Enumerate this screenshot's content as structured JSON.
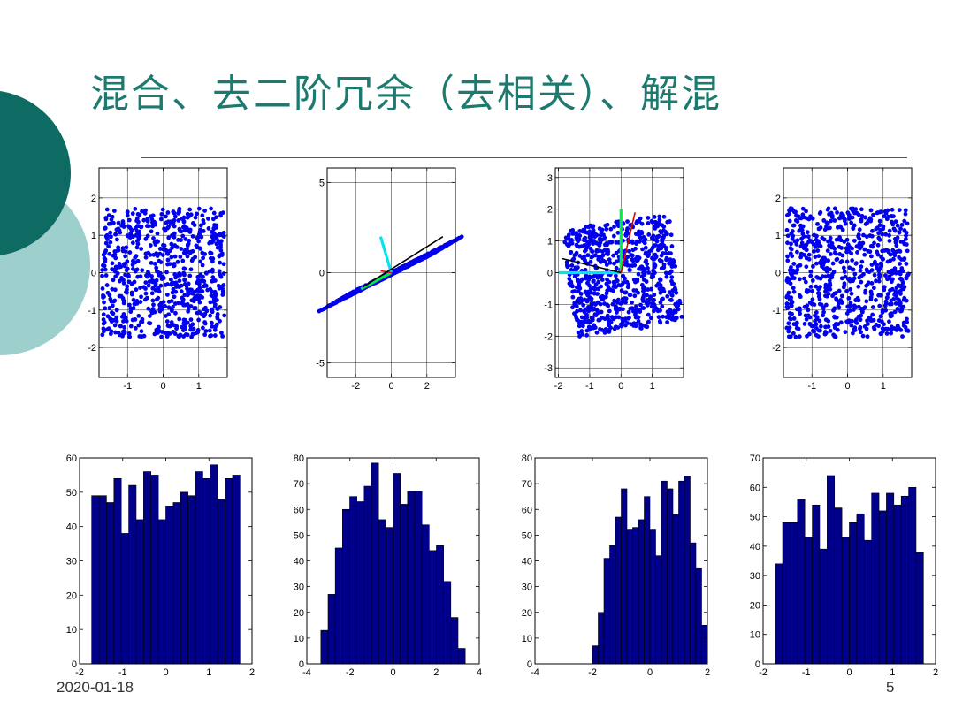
{
  "title": "混合、去二阶冗余（去相关）、解混",
  "footer": {
    "date": "2020-01-18",
    "page": "5"
  },
  "colors": {
    "decor_dark": "#0e6b63",
    "decor_light": "#9dcfcd",
    "title": "#1d7a6e",
    "points": "#0000ee",
    "bars": "#00008b"
  },
  "chart_data": [
    {
      "type": "scatter",
      "distribution": "uniform-square",
      "xlim": [
        -1.8,
        1.8
      ],
      "ylim": [
        -2.8,
        2.8
      ],
      "xticks": [
        -1,
        0,
        1
      ],
      "yticks": [
        -2,
        -1,
        0,
        1,
        2
      ],
      "point_spread": [
        -1.72,
        1.72,
        -1.72,
        1.72
      ],
      "grid": true
    },
    {
      "type": "scatter",
      "distribution": "mixed-parallelogram",
      "xlim": [
        -3.6,
        3.6
      ],
      "ylim": [
        -5.8,
        5.8
      ],
      "xticks": [
        -2,
        0,
        2
      ],
      "yticks": [
        -5,
        0,
        5
      ],
      "grid": true,
      "axes_overlay": [
        {
          "color": "#00e5ee",
          "from": [
            0,
            0
          ],
          "to": [
            -0.6,
            2.0
          ]
        },
        {
          "color": "#00ee44",
          "from": [
            0,
            0
          ],
          "to": [
            -1.7,
            -0.9
          ]
        },
        {
          "color": "#dd0000",
          "from": [
            0,
            0
          ],
          "to": [
            -0.6,
            0.1
          ]
        },
        {
          "color": "#000000",
          "from": [
            -1.6,
            -0.8
          ],
          "to": [
            2.9,
            2.0
          ]
        }
      ]
    },
    {
      "type": "scatter",
      "distribution": "whitened-rotated-square",
      "xlim": [
        -2.1,
        2.0
      ],
      "ylim": [
        -3.3,
        3.3
      ],
      "xticks": [
        -2,
        -1,
        0,
        1
      ],
      "yticks": [
        -3,
        -2,
        -1,
        0,
        1,
        2,
        3
      ],
      "grid": true,
      "axes_overlay": [
        {
          "color": "#00ee44",
          "from": [
            0,
            0
          ],
          "to": [
            0,
            2.0
          ]
        },
        {
          "color": "#00e5ee",
          "from": [
            0,
            0
          ],
          "to": [
            -2.0,
            0
          ]
        },
        {
          "color": "#dd0000",
          "from": [
            0,
            0
          ],
          "to": [
            0.45,
            1.9
          ]
        },
        {
          "color": "#000000",
          "from": [
            0,
            0
          ],
          "to": [
            -1.9,
            0.45
          ]
        }
      ]
    },
    {
      "type": "scatter",
      "distribution": "uniform-square",
      "xlim": [
        -1.8,
        1.8
      ],
      "ylim": [
        -2.8,
        2.8
      ],
      "xticks": [
        -1,
        0,
        1
      ],
      "yticks": [
        -2,
        -1,
        0,
        1,
        2
      ],
      "point_spread": [
        -1.72,
        1.72,
        -1.72,
        1.72
      ],
      "grid": true
    },
    {
      "type": "bar",
      "xlim": [
        -2,
        2
      ],
      "ylim": [
        0,
        60
      ],
      "xticks": [
        -2,
        -1,
        0,
        1,
        2
      ],
      "yticks": [
        0,
        10,
        20,
        30,
        40,
        50,
        60
      ],
      "bin_start": -1.72,
      "bin_width": 0.172,
      "values": [
        49,
        49,
        47,
        54,
        38,
        52,
        42,
        56,
        55,
        42,
        46,
        47,
        50,
        49,
        56,
        54,
        58,
        48,
        54,
        55
      ]
    },
    {
      "type": "bar",
      "xlim": [
        -4,
        4
      ],
      "ylim": [
        0,
        80
      ],
      "xticks": [
        -4,
        -2,
        0,
        2,
        4
      ],
      "yticks": [
        0,
        10,
        20,
        30,
        40,
        50,
        60,
        70,
        80
      ],
      "bin_start": -3.35,
      "bin_width": 0.335,
      "values": [
        13,
        27,
        45,
        60,
        65,
        63,
        69,
        78,
        56,
        53,
        74,
        62,
        67,
        67,
        54,
        44,
        46,
        32,
        18,
        6
      ]
    },
    {
      "type": "bar",
      "xlim": [
        -4,
        2
      ],
      "ylim": [
        0,
        80
      ],
      "xticks": [
        -4,
        -2,
        0,
        2
      ],
      "yticks": [
        0,
        10,
        20,
        30,
        40,
        50,
        60,
        70,
        80
      ],
      "bin_start": -2.0,
      "bin_width": 0.2,
      "values": [
        7,
        20,
        41,
        46,
        57,
        68,
        52,
        53,
        56,
        65,
        52,
        42,
        71,
        68,
        58,
        71,
        73,
        47,
        37,
        15
      ]
    },
    {
      "type": "bar",
      "xlim": [
        -2,
        2
      ],
      "ylim": [
        0,
        70
      ],
      "xticks": [
        -2,
        -1,
        0,
        1,
        2
      ],
      "yticks": [
        0,
        10,
        20,
        30,
        40,
        50,
        60,
        70
      ],
      "bin_start": -1.72,
      "bin_width": 0.172,
      "values": [
        34,
        48,
        48,
        56,
        43,
        54,
        39,
        64,
        53,
        43,
        48,
        51,
        42,
        58,
        52,
        58,
        54,
        57,
        60,
        38
      ]
    }
  ]
}
